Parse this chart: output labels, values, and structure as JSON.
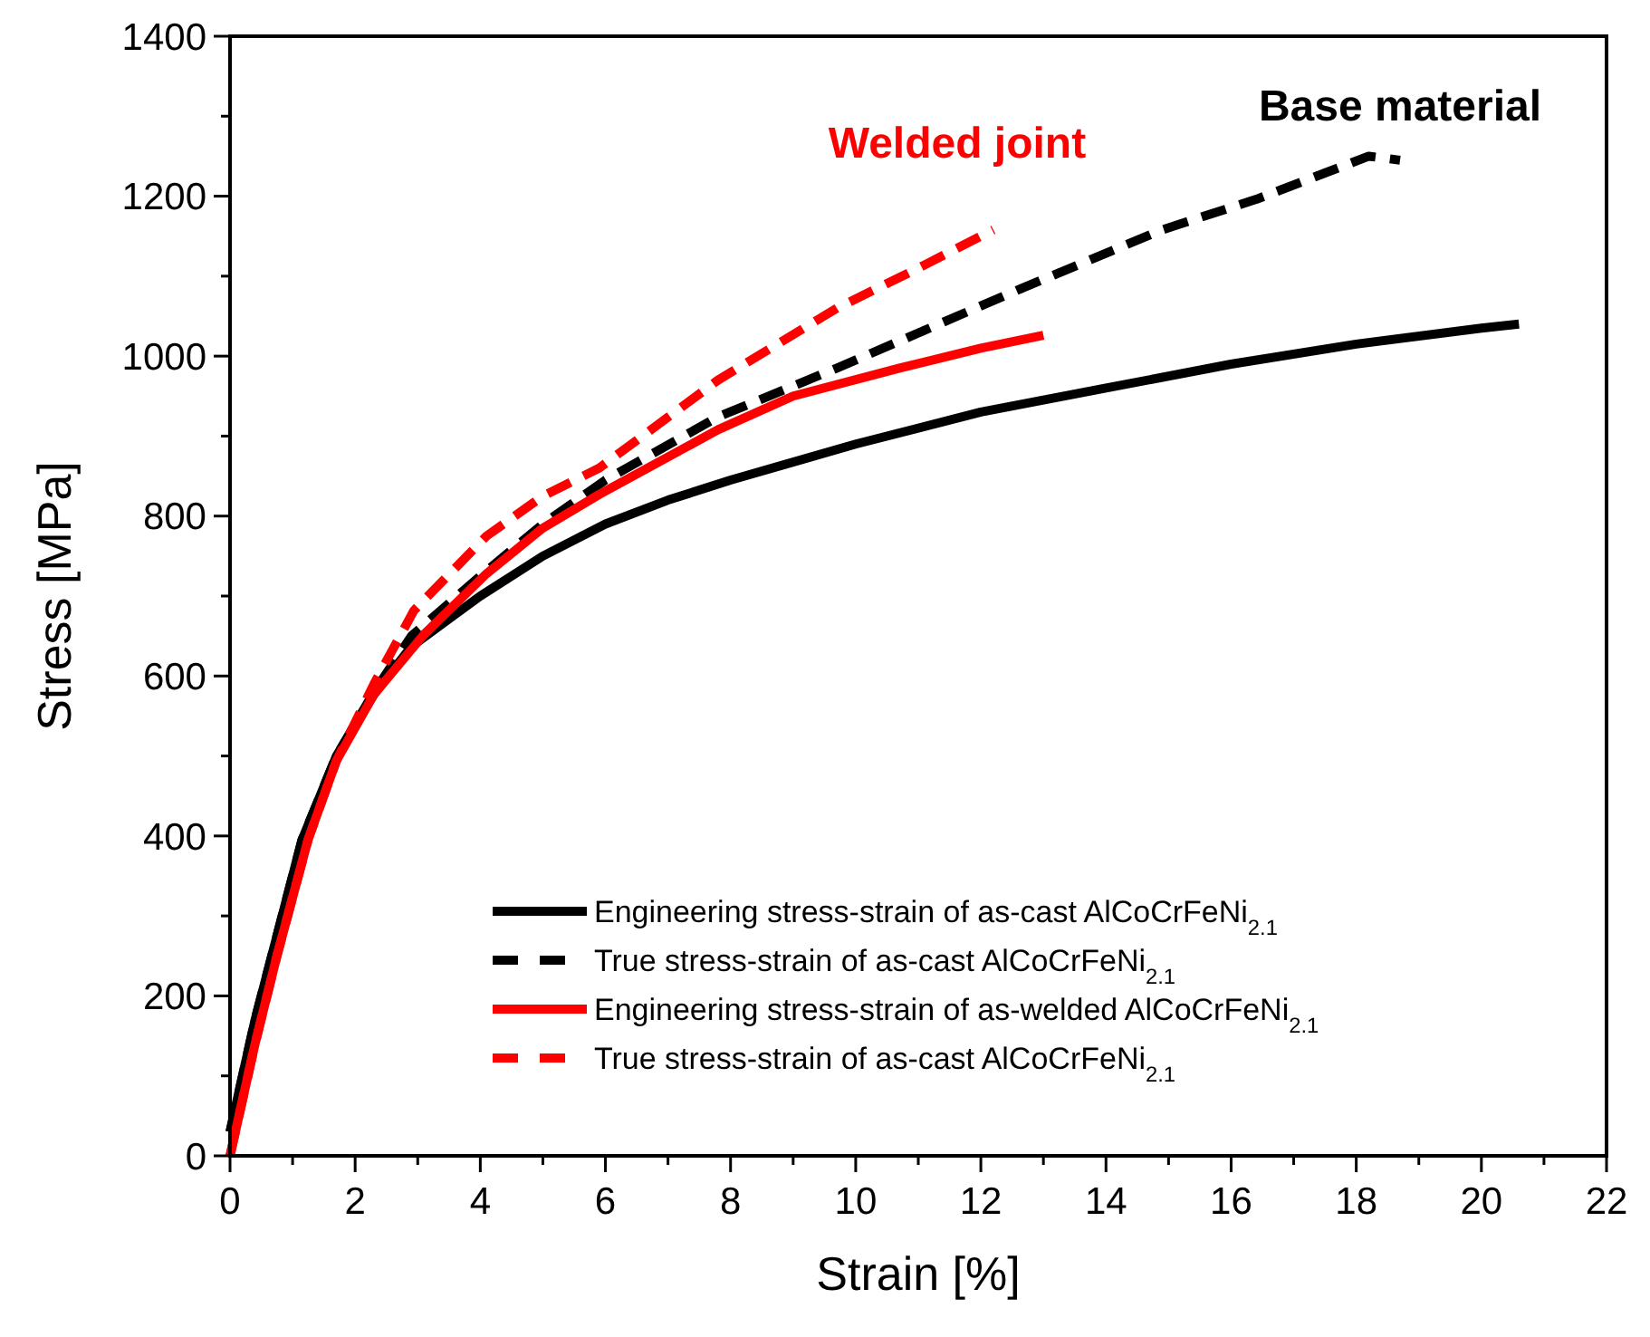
{
  "chart_data": {
    "type": "line",
    "xlabel": "Strain [%]",
    "ylabel": "Stress [MPa]",
    "xlim": [
      0,
      22
    ],
    "ylim": [
      0,
      1400
    ],
    "xticks": [
      0,
      {
        "value": 1,
        "label": null
      },
      2,
      {
        "value": 3,
        "label": null
      },
      4,
      {
        "value": 5,
        "label": null
      },
      6,
      {
        "value": 7,
        "label": null
      },
      8,
      {
        "value": 9,
        "label": null
      },
      10,
      {
        "value": 11,
        "label": null
      },
      12,
      {
        "value": 13,
        "label": null
      },
      14,
      {
        "value": 15,
        "label": null
      },
      16,
      {
        "value": 17,
        "label": null
      },
      18,
      {
        "value": 19,
        "label": null
      },
      20,
      {
        "value": 21,
        "label": null
      },
      22
    ],
    "yticks": [
      0,
      {
        "value": 100,
        "label": null
      },
      200,
      {
        "value": 300,
        "label": null
      },
      400,
      {
        "value": 500,
        "label": null
      },
      600,
      {
        "value": 700,
        "label": null
      },
      800,
      {
        "value": 900,
        "label": null
      },
      1000,
      {
        "value": 1100,
        "label": null
      },
      1200,
      {
        "value": 1300,
        "label": null
      },
      1400
    ],
    "grid": false,
    "legend": "bottom right",
    "marker": "none",
    "series": [
      {
        "name": "Engineering stress-strain of as-cast AlCoCrFeNi$_{2.1}$",
        "color": "#000000",
        "line_style": "solid",
        "x": [
          0,
          0.4,
          0.75,
          1.15,
          1.7,
          2.3,
          2.9,
          4,
          5,
          6,
          7,
          8,
          10,
          12,
          14,
          16,
          18,
          20,
          20.6
        ],
        "values": [
          30,
          170,
          275,
          395,
          500,
          577,
          637,
          700,
          750,
          790,
          820,
          845,
          890,
          930,
          960,
          990,
          1015,
          1035,
          1040
        ]
      },
      {
        "name": "True stress-strain of as-cast AlCoCrFeNi$_{2.1}$",
        "color": "#000000",
        "line_style": "dashed",
        "x": [
          0,
          0.4,
          0.75,
          1.15,
          1.7,
          2.3,
          2.9,
          4,
          5,
          6,
          7.8,
          9.7,
          12.6,
          14.9,
          16.4,
          18.2,
          18.7
        ],
        "values": [
          30,
          170,
          275,
          395,
          500,
          580,
          650,
          725,
          790,
          845,
          924,
          985,
          1083,
          1158,
          1196,
          1250,
          1245
        ]
      },
      {
        "name": "Engineering stress-strain of as-welded AlCoCrFeNi$_{2.1}$",
        "color": "#ff0000",
        "line_style": "solid",
        "x": [
          0,
          0.4,
          0.75,
          1.25,
          1.7,
          2.3,
          3.1,
          4.1,
          5,
          5.9,
          7.8,
          9,
          10.7,
          12,
          13
        ],
        "values": [
          0,
          140,
          250,
          396,
          494,
          577,
          652,
          728,
          785,
          827,
          908,
          950,
          985,
          1010,
          1026
        ]
      },
      {
        "name": "True stress-strain of as-cast AlCoCrFeNi$_{2.1}$",
        "color": "#ff0000",
        "line_style": "dashed",
        "x": [
          0,
          0.4,
          0.75,
          1.25,
          1.7,
          2.3,
          2.94,
          4.1,
          5,
          5.9,
          7.8,
          9.7,
          11,
          12.2
        ],
        "values": [
          0,
          140,
          250,
          396,
          494,
          590,
          682,
          775,
          825,
          860,
          970,
          1060,
          1110,
          1158
        ]
      }
    ],
    "annotations": [
      "Welded joint",
      "Base material"
    ]
  }
}
